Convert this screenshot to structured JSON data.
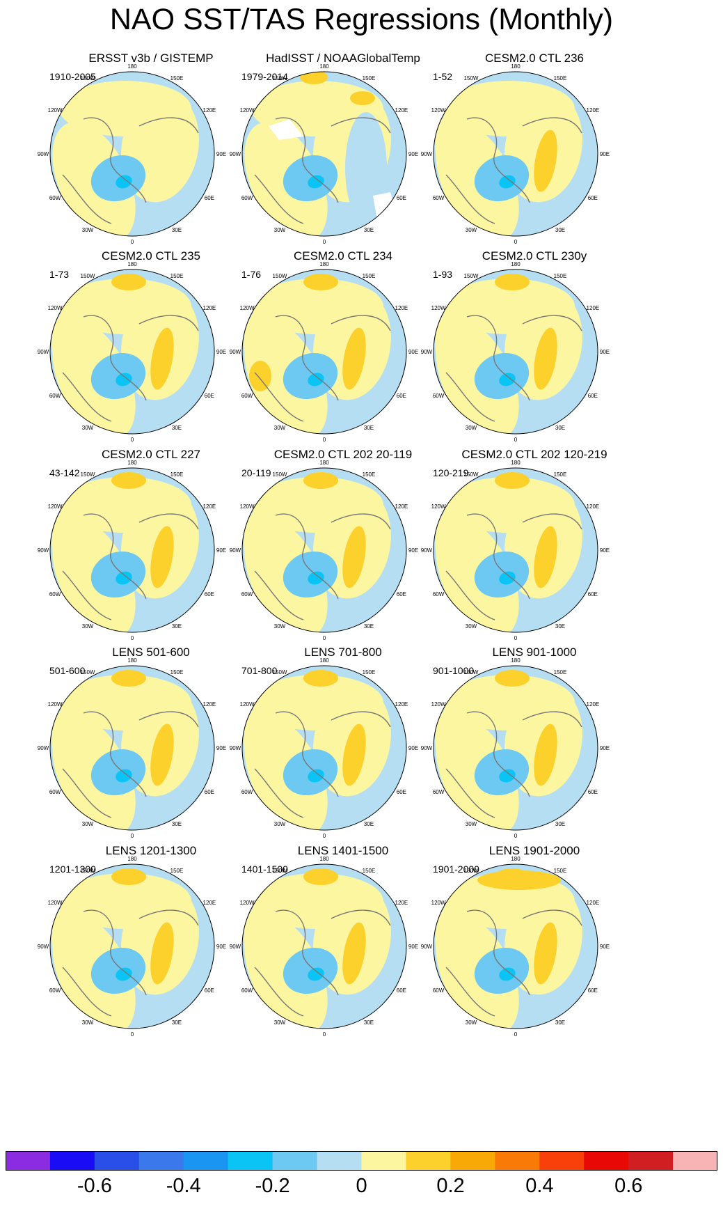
{
  "title": "NAO SST/TAS Regressions (Monthly)",
  "chart_data": {
    "type": "heatmap",
    "projection": "north-polar-stereographic",
    "variable": "NAO SST/TAS regression",
    "lon_labels": [
      "180",
      "150E",
      "120E",
      "90E",
      "60E",
      "30E",
      "0",
      "30W",
      "60W",
      "90W",
      "120W",
      "150W"
    ],
    "panels": [
      {
        "title": "ERSST v3b / GISTEMP",
        "years": "1910-2005"
      },
      {
        "title": "HadISST / NOAAGlobalTemp",
        "years": "1979-2014"
      },
      {
        "title": "CESM2.0 CTL 236",
        "years": "1-52"
      },
      {
        "title": "CESM2.0 CTL 235",
        "years": "1-73"
      },
      {
        "title": "CESM2.0 CTL 234",
        "years": "1-76"
      },
      {
        "title": "CESM2.0 CTL 230y",
        "years": "1-93"
      },
      {
        "title": "CESM2.0 CTL 227",
        "years": "43-142"
      },
      {
        "title": "CESM2.0 CTL 202 20-119",
        "years": "20-119"
      },
      {
        "title": "CESM2.0 CTL 202 120-219",
        "years": "120-219"
      },
      {
        "title": "LENS 501-600",
        "years": "501-600"
      },
      {
        "title": "LENS 701-800",
        "years": "701-800"
      },
      {
        "title": "LENS 901-1000",
        "years": "901-1000"
      },
      {
        "title": "LENS 1201-1300",
        "years": "1201-1300"
      },
      {
        "title": "LENS 1401-1500",
        "years": "1401-1500"
      },
      {
        "title": "LENS 1901-2000",
        "years": "1901-2000"
      }
    ],
    "colorbar": {
      "levels": [
        -0.7,
        -0.6,
        -0.5,
        -0.4,
        -0.3,
        -0.2,
        -0.1,
        0,
        0.1,
        0.2,
        0.3,
        0.4,
        0.5,
        0.6,
        0.7
      ],
      "colors": [
        "#8b2be2",
        "#1a0cf5",
        "#2a4fe8",
        "#3b78eb",
        "#1a95f2",
        "#0ac4f6",
        "#6dc8f2",
        "#b6def2",
        "#fcf6a1",
        "#fcd12b",
        "#f9a906",
        "#f97a06",
        "#f9400a",
        "#e80806",
        "#d11e23",
        "#f8b4b4"
      ],
      "tick_labels": [
        "-0.6",
        "-0.4",
        "-0.2",
        "0",
        "0.2",
        "0.4",
        "0.6"
      ],
      "tick_values": [
        -0.6,
        -0.4,
        -0.2,
        0,
        0.2,
        0.4,
        0.6
      ]
    }
  }
}
